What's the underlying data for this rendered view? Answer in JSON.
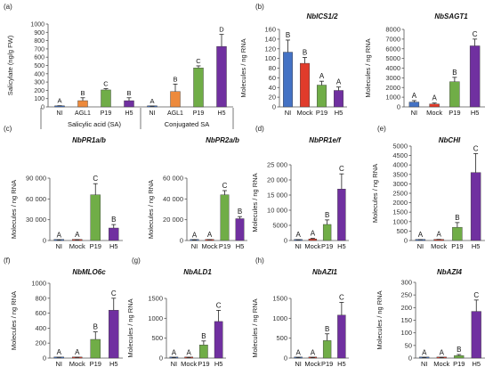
{
  "colors": {
    "NI": "#4472c4",
    "Mock": "#e03b2b",
    "AGL1": "#ed8a3c",
    "P19": "#70ad47",
    "H5": "#7030a0"
  },
  "chart_data": [
    {
      "panel": "(a)",
      "type": "bar",
      "ylabel": "Salicylate  (ng/g FW)",
      "ylim": [
        0,
        1000
      ],
      "ticks": [
        "0",
        "100",
        "200",
        "300",
        "400",
        "500",
        "600",
        "700",
        "800",
        "900",
        "1000"
      ],
      "categories": [
        "NI",
        "AGL1",
        "P19",
        "H5",
        "NI",
        "AGL1",
        "P19",
        "H5"
      ],
      "values": [
        8,
        75,
        205,
        75,
        5,
        185,
        470,
        730
      ],
      "errors": [
        6,
        35,
        15,
        35,
        4,
        90,
        25,
        145
      ],
      "letters": [
        "A",
        "B",
        "C",
        "B",
        "A",
        "B",
        "C",
        "D"
      ],
      "groups": [
        "Salicylic acid (SA)",
        "Conjugated SA"
      ]
    },
    {
      "panel": "(b)",
      "type": "bar",
      "title": "NbICS1/2",
      "ylabel": "Molecules / ng RNA",
      "ylim": [
        0,
        160
      ],
      "ticks": [
        "0",
        "20",
        "40",
        "60",
        "80",
        "100",
        "120",
        "140",
        "160"
      ],
      "categories": [
        "NI",
        "Mock",
        "P19",
        "H5"
      ],
      "values": [
        113,
        90,
        45,
        34
      ],
      "errors": [
        25,
        12,
        8,
        7
      ],
      "letters": [
        "B",
        "B",
        "A",
        "A"
      ]
    },
    {
      "panel": "",
      "type": "bar",
      "title": "NbSAGT1",
      "ylabel": "Molecules / ng RNA",
      "ylim": [
        0,
        8000
      ],
      "ticks": [
        "0",
        "1000",
        "2000",
        "3000",
        "4000",
        "5000",
        "6000",
        "7000",
        "8000"
      ],
      "categories": [
        "NI",
        "Mock",
        "P19",
        "H5"
      ],
      "values": [
        500,
        300,
        2600,
        6300
      ],
      "errors": [
        150,
        100,
        450,
        700
      ],
      "letters": [
        "A",
        "A",
        "B",
        "C"
      ]
    },
    {
      "panel": "(c)",
      "type": "bar",
      "title": "NbPR1a/b",
      "ylabel": "Molecules / ng RNA",
      "ylim": [
        0,
        90000
      ],
      "ticks": [
        "0",
        "30 000",
        "60 000",
        "90 000"
      ],
      "categories": [
        "NI",
        "Mock",
        "P19",
        "H5"
      ],
      "values": [
        200,
        700,
        66000,
        18000
      ],
      "errors": [
        200,
        300,
        16000,
        5000
      ],
      "letters": [
        "A",
        "A",
        "C",
        "B"
      ]
    },
    {
      "panel": "",
      "type": "bar",
      "title": "NbPR2a/b",
      "ylabel": "Molecules / ng RNA",
      "ylim": [
        0,
        60000
      ],
      "ticks": [
        "0",
        "20 000",
        "40 000",
        "60 000"
      ],
      "categories": [
        "NI",
        "Mock",
        "P19",
        "H5"
      ],
      "values": [
        300,
        500,
        44000,
        21000
      ],
      "errors": [
        200,
        300,
        4000,
        2000
      ],
      "letters": [
        "A",
        "A",
        "C",
        "B"
      ]
    },
    {
      "panel": "(d)",
      "type": "bar",
      "title": "NbPR1e/f",
      "ylabel": "Molecules / ng RNA",
      "ylim": [
        0,
        25000
      ],
      "ticks": [
        "0",
        "5000",
        "10 000",
        "15 000",
        "20 000",
        "25 000"
      ],
      "categories": [
        "NI",
        "Mock",
        "P19",
        "H5"
      ],
      "values": [
        150,
        500,
        5300,
        17000
      ],
      "errors": [
        100,
        200,
        1500,
        5000
      ],
      "letters": [
        "A",
        "A",
        "B",
        "C"
      ]
    },
    {
      "panel": "(e)",
      "type": "bar",
      "title": "NbCHI",
      "ylabel": "Molecules / ng RNA",
      "ylim": [
        0,
        5000
      ],
      "ticks": [
        "0",
        "500",
        "1000",
        "1500",
        "2000",
        "2500",
        "3000",
        "3500",
        "4000",
        "4500",
        "5000"
      ],
      "categories": [
        "NI",
        "Mock",
        "P19",
        "H5"
      ],
      "values": [
        30,
        40,
        700,
        3600
      ],
      "errors": [
        20,
        20,
        250,
        1000
      ],
      "letters": [
        "A",
        "A",
        "B",
        "C"
      ]
    },
    {
      "panel": "(f)",
      "type": "bar",
      "title": "NbMLO6c",
      "ylabel": "Molecules / ng RNA",
      "ylim": [
        0,
        1000
      ],
      "ticks": [
        "0",
        "200",
        "400",
        "600",
        "800",
        "1000"
      ],
      "categories": [
        "NI",
        "Mock",
        "P19",
        "H5"
      ],
      "values": [
        5,
        5,
        250,
        640
      ],
      "errors": [
        5,
        5,
        100,
        160
      ],
      "letters": [
        "A",
        "A",
        "B",
        "C"
      ]
    },
    {
      "panel": "(g)",
      "type": "bar",
      "title": "NbALD1",
      "ylabel": "Molecules / ng RNA",
      "ylim": [
        0,
        1500
      ],
      "ticks": [
        "0",
        "500",
        "1000",
        "1500"
      ],
      "categories": [
        "NI",
        "Mock",
        "P19",
        "H5"
      ],
      "values": [
        5,
        5,
        330,
        920
      ],
      "errors": [
        5,
        5,
        100,
        280
      ],
      "letters": [
        "A",
        "A",
        "B",
        "C"
      ]
    },
    {
      "panel": "(h)",
      "type": "bar",
      "title": "NbAZI1",
      "ylabel": "Molecules / ng RNA",
      "ylim": [
        0,
        1500
      ],
      "ticks": [
        "0",
        "500",
        "1000",
        "1500"
      ],
      "categories": [
        "NI",
        "Mock",
        "P19",
        "H5"
      ],
      "values": [
        5,
        5,
        440,
        1080
      ],
      "errors": [
        5,
        5,
        170,
        320
      ],
      "letters": [
        "A",
        "A",
        "B",
        "C"
      ]
    },
    {
      "panel": "",
      "type": "bar",
      "title": "NbAZI4",
      "ylabel": "Molecules / ng RNA",
      "ylim": [
        0,
        300
      ],
      "ticks": [
        "0",
        "50",
        "100",
        "150",
        "200",
        "250",
        "300"
      ],
      "categories": [
        "NI",
        "Mock",
        "P19",
        "H5"
      ],
      "values": [
        1,
        1,
        10,
        185
      ],
      "errors": [
        1,
        1,
        4,
        45
      ],
      "letters": [
        "A",
        "A",
        "B",
        "C"
      ]
    }
  ]
}
